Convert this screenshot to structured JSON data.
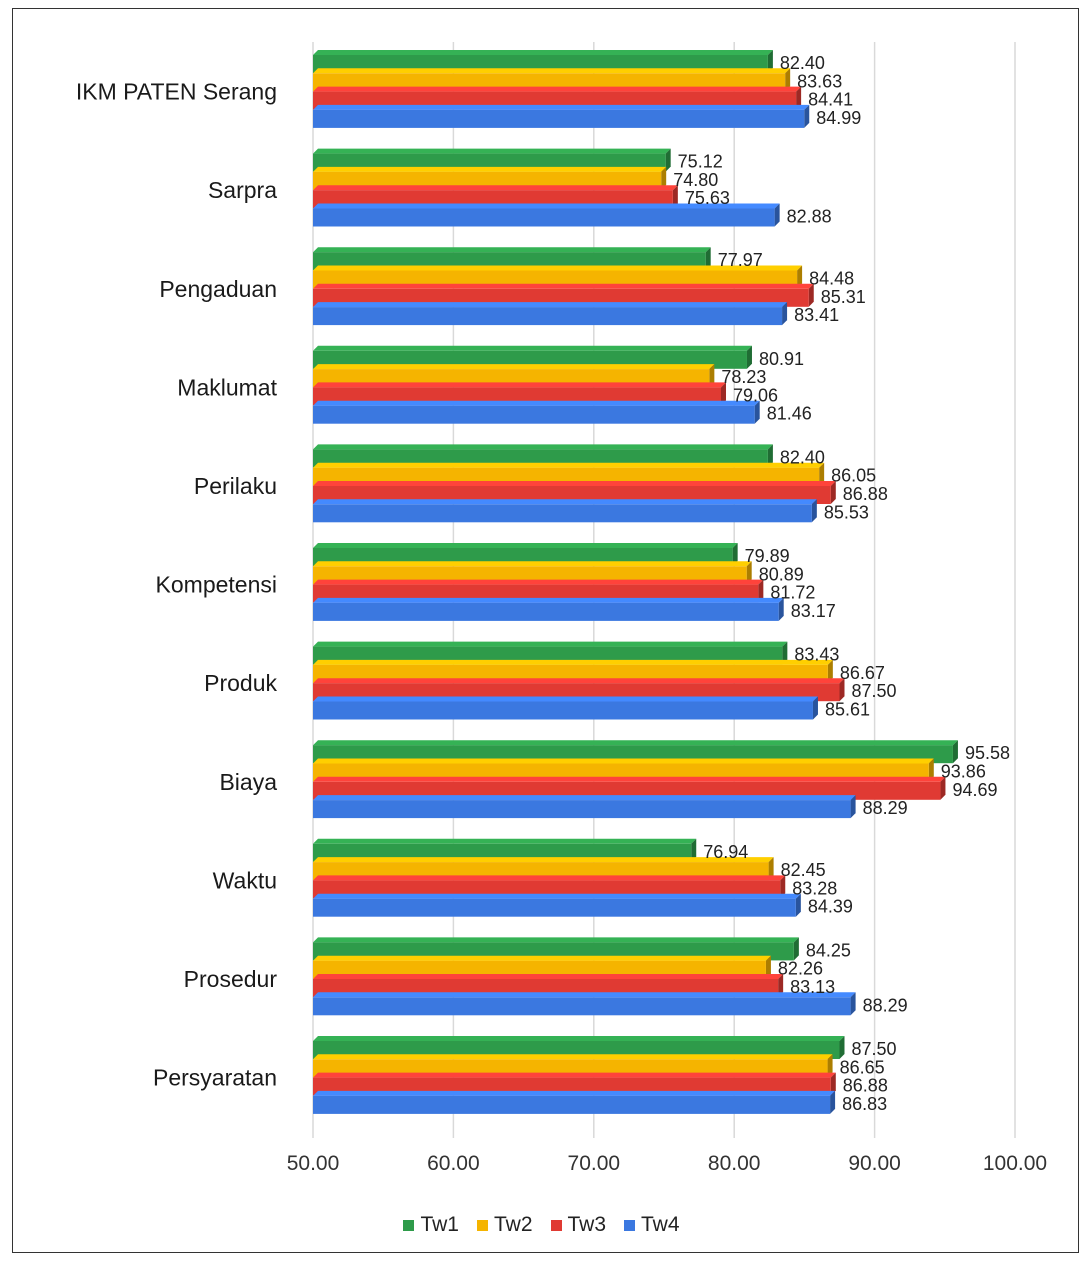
{
  "chart_data": {
    "type": "bar",
    "orientation": "horizontal",
    "categories": [
      "IKM PATEN Serang",
      "Sarpra",
      "Pengaduan",
      "Maklumat",
      "Perilaku",
      "Kompetensi",
      "Produk",
      "Biaya",
      "Waktu",
      "Prosedur",
      "Persyaratan"
    ],
    "series": [
      {
        "name": "Tw1",
        "color": "#2e9b4a",
        "values": [
          82.4,
          75.12,
          77.97,
          80.91,
          82.4,
          79.89,
          83.43,
          95.58,
          76.94,
          84.25,
          87.5
        ],
        "labels": [
          "82.40",
          "75.12",
          "77.97",
          "80.91",
          "82.40",
          "79.89",
          "83.43",
          "95.58",
          "76.94",
          "84.25",
          "87.50"
        ]
      },
      {
        "name": "Tw2",
        "color": "#f5b400",
        "values": [
          83.63,
          74.8,
          84.48,
          78.23,
          86.05,
          80.89,
          86.67,
          93.86,
          82.45,
          82.26,
          86.65
        ],
        "labels": [
          "83.63",
          "74.80",
          "84.48",
          "78.23",
          "86.05",
          "80.89",
          "86.67",
          "93.86",
          "82.45",
          "82.26",
          "86.65"
        ]
      },
      {
        "name": "Tw3",
        "color": "#e03a33",
        "values": [
          84.41,
          75.63,
          85.31,
          79.06,
          86.88,
          81.72,
          87.5,
          94.69,
          83.28,
          83.13,
          86.88
        ],
        "labels": [
          "84.41",
          "75.63",
          "85.31",
          "79.06",
          "86.88",
          "81.72",
          "87.50",
          "94.69",
          "83.28",
          "83.13",
          "86.88"
        ]
      },
      {
        "name": "Tw4",
        "color": "#3b78e0",
        "values": [
          84.99,
          82.88,
          83.41,
          81.46,
          85.53,
          83.17,
          85.61,
          88.29,
          84.39,
          88.29,
          86.83
        ],
        "labels": [
          "84.99",
          "82.88",
          "83.41",
          "81.46",
          "85.53",
          "83.17",
          "85.61",
          "88.29",
          "84.39",
          "88.29",
          "86.83"
        ]
      }
    ],
    "xlim": [
      50,
      100
    ],
    "x_ticks": [
      "50.00",
      "60.00",
      "70.00",
      "80.00",
      "90.00",
      "100.00"
    ],
    "grid": true,
    "legend_position": "bottom"
  }
}
